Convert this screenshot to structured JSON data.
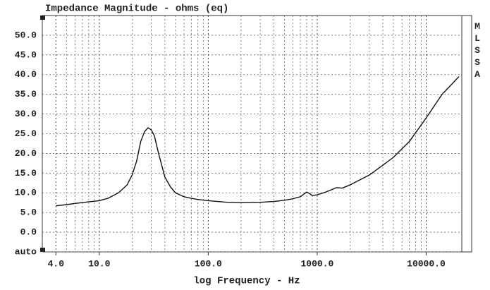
{
  "chart_data": {
    "type": "line",
    "title": "Impedance Magnitude - ohms (eq)",
    "xlabel": "log Frequency - Hz",
    "side_label": "MLSSA",
    "xscale": "log",
    "grid": true,
    "color": "#111111",
    "xlim": [
      3,
      20000
    ],
    "ylim": [
      -5,
      55
    ],
    "xticks": [
      {
        "value": 4,
        "label": "4.0"
      },
      {
        "value": 10,
        "label": "10.0"
      },
      {
        "value": 100,
        "label": "100.0"
      },
      {
        "value": 1000,
        "label": "1000.0"
      },
      {
        "value": 10000,
        "label": "10000.0"
      }
    ],
    "yticks": [
      {
        "value": -5,
        "label": "auto"
      },
      {
        "value": 0,
        "label": "0.0"
      },
      {
        "value": 5,
        "label": "5.0"
      },
      {
        "value": 10,
        "label": "10.0"
      },
      {
        "value": 15,
        "label": "15.0"
      },
      {
        "value": 20,
        "label": "20.0"
      },
      {
        "value": 25,
        "label": "25.0"
      },
      {
        "value": 30,
        "label": "30.0"
      },
      {
        "value": 35,
        "label": "35.0"
      },
      {
        "value": 40,
        "label": "40.0"
      },
      {
        "value": 45,
        "label": "45.0"
      },
      {
        "value": 50,
        "label": "50.0"
      }
    ],
    "x": [
      4,
      5,
      6,
      8,
      10,
      12,
      15,
      18,
      20,
      22,
      24,
      26,
      28,
      30,
      32,
      35,
      40,
      45,
      50,
      60,
      70,
      80,
      100,
      150,
      200,
      300,
      400,
      500,
      600,
      700,
      800,
      850,
      900,
      1000,
      1200,
      1500,
      1700,
      2000,
      3000,
      4000,
      5000,
      7000,
      10000,
      14000,
      20000
    ],
    "values": [
      6.7,
      7.0,
      7.3,
      7.7,
      8.0,
      8.6,
      10,
      12,
      14.5,
      18,
      23,
      25.5,
      26.5,
      26,
      24.5,
      20,
      14,
      11.5,
      10,
      9,
      8.6,
      8.3,
      8.0,
      7.6,
      7.5,
      7.6,
      7.8,
      8.1,
      8.5,
      9,
      10.2,
      9.8,
      9.3,
      9.5,
      10.2,
      11.3,
      11.2,
      12,
      14.5,
      17,
      19,
      23,
      29,
      35,
      39.5
    ]
  }
}
